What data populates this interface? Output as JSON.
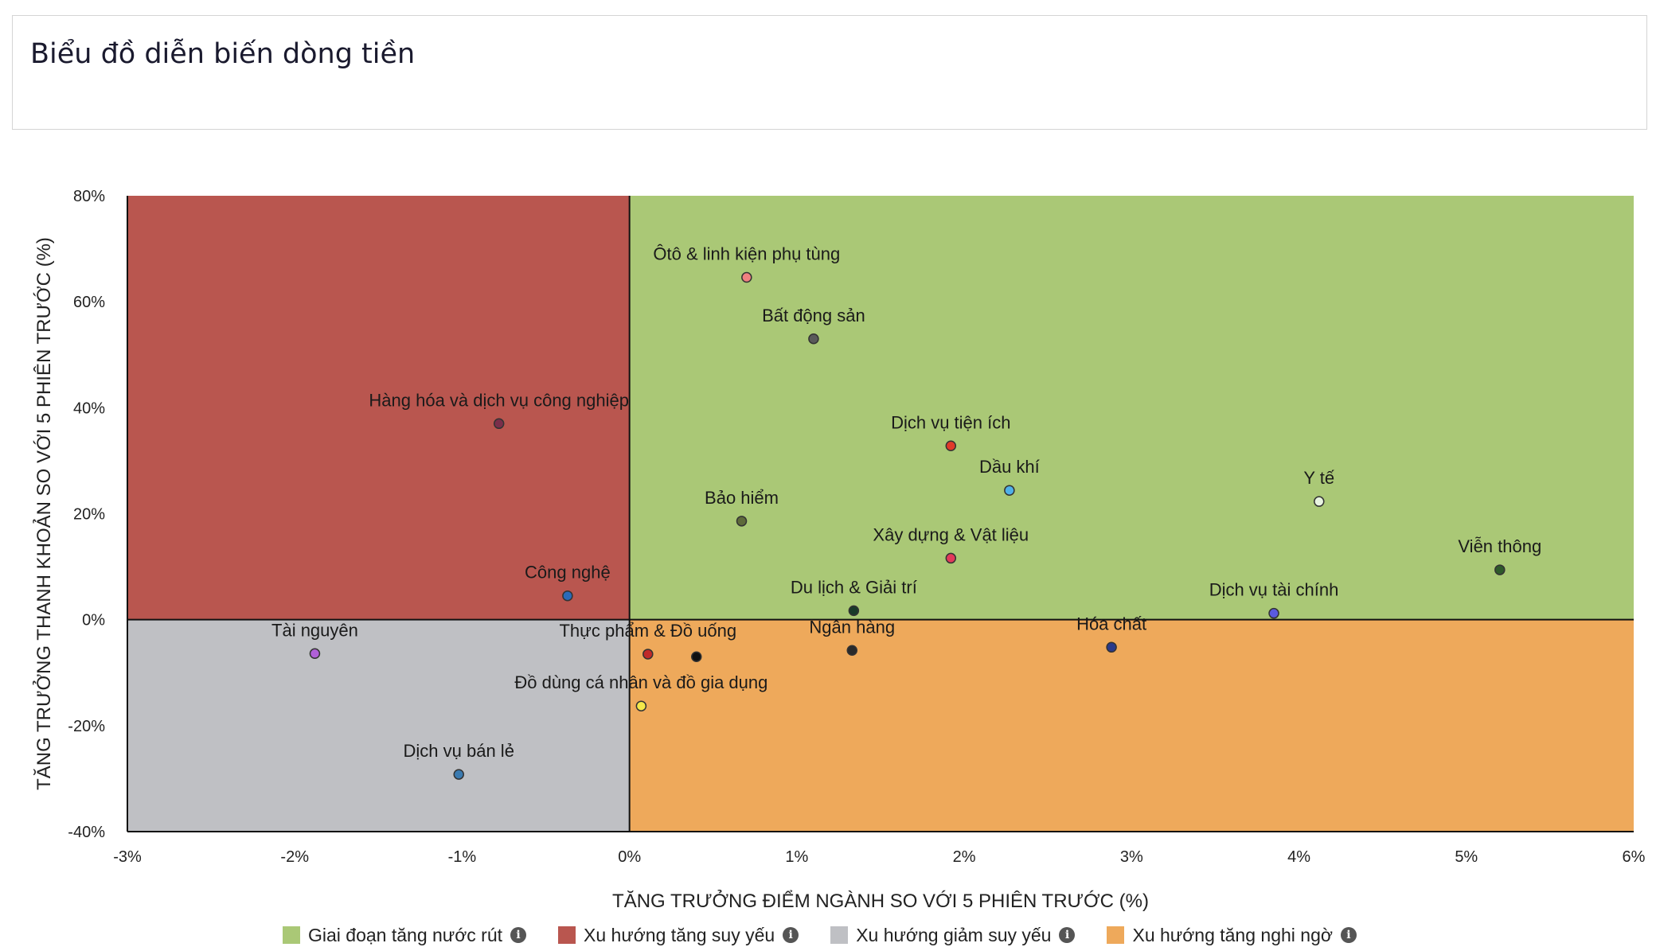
{
  "page_title": "Biểu đồ diễn biến dòng tiền",
  "colors": {
    "top_left": "#b9564f",
    "top_right": "#aac876",
    "bottom_left": "#bfc0c4",
    "bottom_right": "#eea95b"
  },
  "chart_data": {
    "type": "scatter",
    "xlabel": "TĂNG TRƯỞNG ĐIỂM NGÀNH SO VỚI 5 PHIÊN TRƯỚC (%)",
    "ylabel": "TĂNG TRƯỞNG THANH KHOẢN SO VỚI 5 PHIÊN TRƯỚC (%)",
    "xlim": [
      -3,
      6
    ],
    "ylim": [
      -40,
      80
    ],
    "x_ticks": [
      -3,
      -2,
      -1,
      0,
      1,
      2,
      3,
      4,
      5,
      6
    ],
    "y_ticks": [
      -40,
      -20,
      0,
      20,
      40,
      60,
      80
    ],
    "x_tick_labels": [
      "-3%",
      "-2%",
      "-1%",
      "0%",
      "1%",
      "2%",
      "3%",
      "4%",
      "5%",
      "6%"
    ],
    "y_tick_labels": [
      "-40%",
      "-20%",
      "0%",
      "20%",
      "40%",
      "60%",
      "80%"
    ],
    "points": [
      {
        "label": "Ôtô & linh kiện phụ tùng",
        "x": 0.7,
        "y": 64.6,
        "color": "#f08080"
      },
      {
        "label": "Bất động sản",
        "x": 1.1,
        "y": 53.0,
        "color": "#5a5a5a"
      },
      {
        "label": "Hàng hóa và dịch vụ công nghiệp",
        "x": -0.78,
        "y": 37.0,
        "color": "#7a2e4a"
      },
      {
        "label": "Dịch vụ tiện ích",
        "x": 1.92,
        "y": 32.8,
        "color": "#e03a2a"
      },
      {
        "label": "Dầu khí",
        "x": 2.27,
        "y": 24.4,
        "color": "#4fb0e8"
      },
      {
        "label": "Y tế",
        "x": 4.12,
        "y": 22.3,
        "color": "#e8f4e0"
      },
      {
        "label": "Bảo hiểm",
        "x": 0.67,
        "y": 18.6,
        "color": "#5e6a3a"
      },
      {
        "label": "Xây dựng & Vật liệu",
        "x": 1.92,
        "y": 11.6,
        "color": "#e23a5a"
      },
      {
        "label": "Viễn thông",
        "x": 5.2,
        "y": 9.4,
        "color": "#2e5a2a"
      },
      {
        "label": "Công nghệ",
        "x": -0.37,
        "y": 4.5,
        "color": "#2a6ab8"
      },
      {
        "label": "Du lịch & Giải trí",
        "x": 1.34,
        "y": 1.7,
        "color": "#1a3a2a"
      },
      {
        "label": "Dịch vụ tài chính",
        "x": 3.85,
        "y": 1.2,
        "color": "#5a5ae0"
      },
      {
        "label": "Tài nguyên",
        "x": -1.88,
        "y": -6.4,
        "color": "#b060d8"
      },
      {
        "label": "Thực phẩm & Đồ uống",
        "x": 0.11,
        "y": -6.5,
        "color": "#c02a2a"
      },
      {
        "label": "",
        "x": 0.4,
        "y": -7.0,
        "color": "#111111"
      },
      {
        "label": "Ngân hàng",
        "x": 1.33,
        "y": -5.8,
        "color": "#2a2a2a"
      },
      {
        "label": "Hóa chất",
        "x": 2.88,
        "y": -5.2,
        "color": "#2a3a8a"
      },
      {
        "label": "Đồ dùng cá nhân và đồ gia dụng",
        "x": 0.07,
        "y": -16.3,
        "color": "#f4e84a"
      },
      {
        "label": "Dịch vụ bán lẻ",
        "x": -1.02,
        "y": -29.2,
        "color": "#3a7ab0"
      }
    ]
  },
  "legend": [
    {
      "label": "Giai đoạn tăng nước rút",
      "color": "#aac876"
    },
    {
      "label": "Xu hướng tăng suy yếu",
      "color": "#b9564f"
    },
    {
      "label": "Xu hướng giảm suy yếu",
      "color": "#bfc0c4"
    },
    {
      "label": "Xu hướng tăng nghi ngờ",
      "color": "#eea95b"
    }
  ]
}
